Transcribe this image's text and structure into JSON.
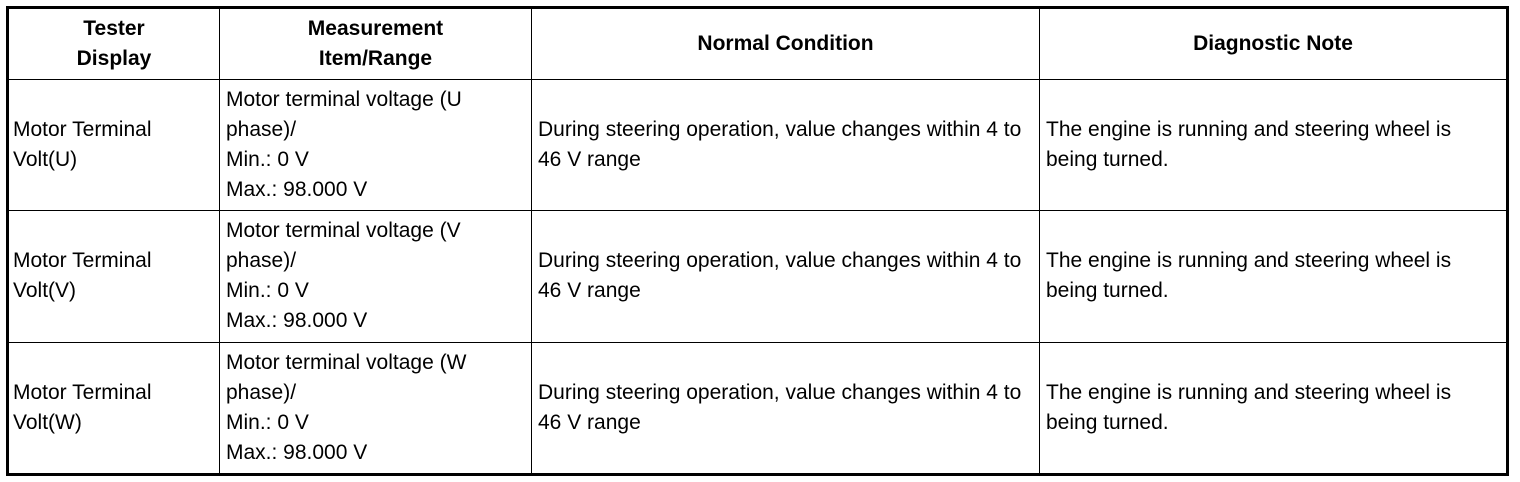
{
  "table": {
    "header": [
      "Tester Display",
      "Measurement Item/Range",
      "Normal Condition",
      "Diagnostic Note"
    ],
    "rows": [
      [
        [
          "Motor Terminal Volt(U)"
        ],
        [
          "Motor terminal voltage (U phase)/",
          "Min.: 0 V",
          "Max.: 98.000 V"
        ],
        [
          "During steering operation, value changes within 4 to 46 V range"
        ],
        [
          "The engine is running and steering wheel is being turned."
        ]
      ],
      [
        [
          "Motor Terminal Volt(V)"
        ],
        [
          "Motor terminal voltage (V phase)/",
          "Min.: 0 V",
          "Max.: 98.000 V"
        ],
        [
          "During steering operation, value changes within 4 to 46 V range"
        ],
        [
          "The engine is running and steering wheel is being turned."
        ]
      ],
      [
        [
          "Motor Terminal Volt(W)"
        ],
        [
          "Motor terminal voltage (W phase)/",
          "Min.: 0 V",
          "Max.: 98.000 V"
        ],
        [
          "During steering operation, value changes within 4 to 46 V range"
        ],
        [
          "The engine is running and steering wheel is being turned."
        ]
      ]
    ]
  }
}
